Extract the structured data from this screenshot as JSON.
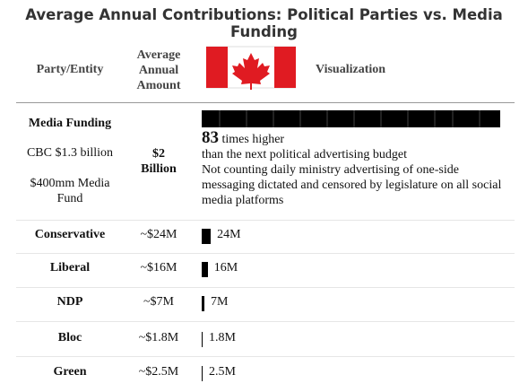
{
  "title": "Average Annual Contributions: Political Parties vs. Media Funding",
  "header": {
    "entity": "Party/Entity",
    "amount": "Average Annual Amount",
    "visualization": "Visualization"
  },
  "media_row": {
    "name": "Media Funding",
    "line1": "CBC $1.3 billion",
    "line2": "$400mm Media Fund",
    "amount": "$2 Billion",
    "multiplier": "83",
    "multiplier_text": "times higher",
    "comparison": "than the next political advertising budget",
    "note": "Not counting daily ministry advertising of one-side messaging dictated and censored by legislature on all social media platforms"
  },
  "rows": [
    {
      "name": "Conservative",
      "amount": "~$24M",
      "bar_value": 24,
      "bar_label": "24M"
    },
    {
      "name": "Liberal",
      "amount": "~$16M",
      "bar_value": 16,
      "bar_label": "16M"
    },
    {
      "name": "NDP",
      "amount": "~$7M",
      "bar_value": 7,
      "bar_label": "7M"
    },
    {
      "name": "Bloc",
      "amount": "~$1.8M",
      "bar_value": 1.8,
      "bar_label": "1.8M"
    },
    {
      "name": "Green",
      "amount": "~$2.5M",
      "bar_value": 2.5,
      "bar_label": "2.5M"
    }
  ]
}
